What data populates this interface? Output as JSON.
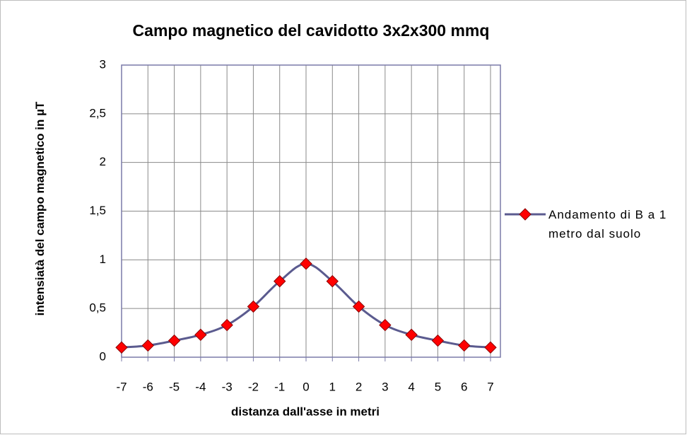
{
  "chart_data": {
    "type": "line",
    "title": "Campo magnetico del cavidotto 3x2x300 mmq",
    "x_label": "distanza dall'asse in metri",
    "y_label": "intensiatà del campo magnetico in µT",
    "x": [
      -7,
      -6,
      -5,
      -4,
      -3,
      -2,
      -1,
      0,
      1,
      2,
      3,
      4,
      5,
      6,
      7
    ],
    "series": [
      {
        "name": "Andamento di B a 1 metro dal suolo",
        "color": "#5b5b8f",
        "marker_color": "#ff0000",
        "values": [
          0.1,
          0.12,
          0.17,
          0.23,
          0.33,
          0.52,
          0.78,
          0.96,
          0.78,
          0.52,
          0.33,
          0.23,
          0.17,
          0.12,
          0.1
        ]
      }
    ],
    "xlim": [
      -7,
      7
    ],
    "xticks": [
      -7,
      -6,
      -5,
      -4,
      -3,
      -2,
      -1,
      0,
      1,
      2,
      3,
      4,
      5,
      6,
      7
    ],
    "ylim": [
      0,
      3
    ],
    "yticks": [
      0,
      {
        "value": 0.5,
        "label": "0,5"
      },
      1,
      {
        "value": 1.5,
        "label": "1,5"
      },
      2,
      {
        "value": 2.5,
        "label": "2,5"
      },
      3
    ],
    "grid": true,
    "legend": "right"
  }
}
